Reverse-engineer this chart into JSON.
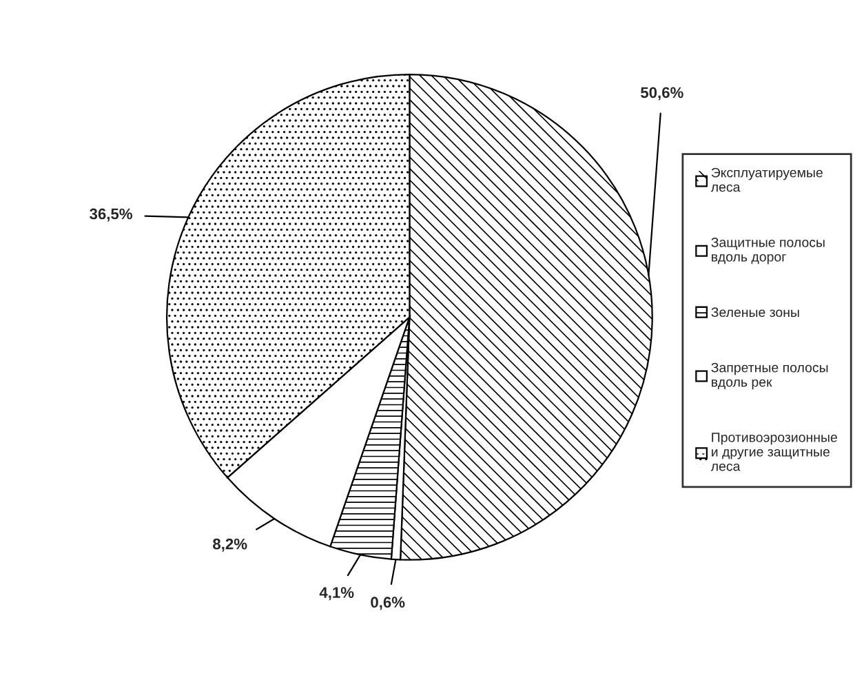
{
  "chart_data": {
    "type": "pie",
    "categories": [
      "Эксплуатируемые леса",
      "Защитные полосы вдоль дорог",
      "Зеленые зоны",
      "Запретные полосы вдоль рек",
      "Противоэрозионные и другие защитные леса"
    ],
    "values": [
      50.6,
      0.6,
      4.1,
      8.2,
      36.5
    ],
    "value_labels": [
      "50,6%",
      "0,6%",
      "4,1%",
      "8,2%",
      "36,5%"
    ],
    "colors": [
      "#ffffff",
      "#ffffff",
      "#ffffff",
      "#ffffff",
      "#ffffff"
    ],
    "legend": "right"
  }
}
